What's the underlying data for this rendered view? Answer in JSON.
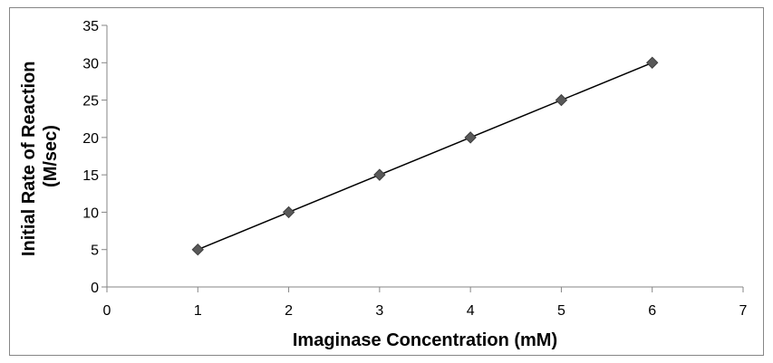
{
  "chart_data": {
    "type": "scatter",
    "title": "",
    "xlabel": "Imaginase Concentration (mM)",
    "ylabel_lines": [
      "Initial Rate of Reaction",
      "(M/sec)"
    ],
    "xlim": [
      0,
      7
    ],
    "ylim": [
      0,
      35
    ],
    "xticks": [
      0,
      1,
      2,
      3,
      4,
      5,
      6,
      7
    ],
    "yticks": [
      0,
      5,
      10,
      15,
      20,
      25,
      30,
      35
    ],
    "grid": false,
    "legend": "none",
    "series": [
      {
        "x": [
          1,
          2,
          3,
          4,
          5,
          6
        ],
        "y": [
          5,
          10,
          15,
          20,
          25,
          30
        ],
        "marker": "diamond",
        "line": "linear-trendline",
        "color": "#595959"
      }
    ],
    "trendline": {
      "x_start": 1,
      "x_end": 6,
      "slope": 5,
      "intercept": 0,
      "color": "#000000"
    },
    "colors": {
      "axis": "#868686",
      "border": "#868686",
      "marker": "#595959",
      "marker_edge": "#3f3f3f",
      "text": "#000000"
    }
  }
}
